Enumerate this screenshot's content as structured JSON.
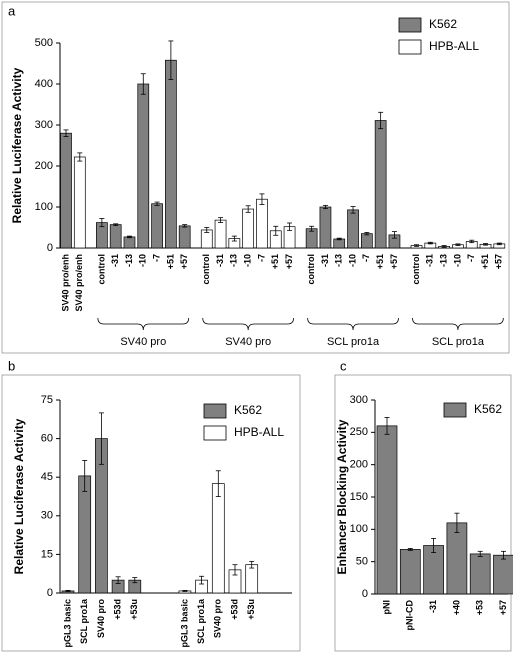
{
  "chart_data": [
    {
      "type": "bar",
      "panel_label": "a",
      "ylabel": "Relative Luciferase Activity",
      "ylim": [
        0,
        500
      ],
      "yticks": [
        0,
        100,
        200,
        300,
        400,
        500
      ],
      "legend": [
        {
          "name": "K562",
          "color": "#808080"
        },
        {
          "name": "HPB-ALL",
          "color": "#ffffff"
        }
      ],
      "groups": [
        {
          "label": null,
          "color": "#808080",
          "categories": [
            "SV40 pro/enh"
          ],
          "values": [
            280
          ],
          "errors": [
            8
          ]
        },
        {
          "label": null,
          "color": "#ffffff",
          "categories": [
            "SV40 pro/enh"
          ],
          "values": [
            222
          ],
          "errors": [
            10
          ]
        },
        {
          "label": "SV40 pro",
          "color": "#808080",
          "categories": [
            "control",
            "-31",
            "-13",
            "-10",
            "-7",
            "+51",
            "+57"
          ],
          "values": [
            62,
            57,
            27,
            400,
            108,
            458,
            54
          ],
          "errors": [
            10,
            2,
            2,
            25,
            4,
            47,
            3
          ]
        },
        {
          "label": "SV40 pro",
          "color": "#ffffff",
          "categories": [
            "control",
            "-31",
            "-13",
            "-10",
            "-7",
            "+51",
            "+57"
          ],
          "values": [
            44,
            68,
            23,
            95,
            119,
            42,
            52
          ],
          "errors": [
            6,
            6,
            6,
            8,
            13,
            11,
            9
          ]
        },
        {
          "label": "SCL pro1a",
          "color": "#808080",
          "categories": [
            "control",
            "-31",
            "-13",
            "-10",
            "-7",
            "+51",
            "+57"
          ],
          "values": [
            47,
            100,
            22,
            93,
            35,
            311,
            32
          ],
          "errors": [
            6,
            4,
            2,
            8,
            3,
            20,
            8
          ]
        },
        {
          "label": "SCL pro1a",
          "color": "#ffffff",
          "categories": [
            "control",
            "-31",
            "-13",
            "-10",
            "-7",
            "+51",
            "+57"
          ],
          "values": [
            6,
            12,
            4,
            8,
            16,
            9,
            10
          ],
          "errors": [
            2,
            2,
            2,
            2,
            3,
            2,
            2
          ]
        }
      ]
    },
    {
      "type": "bar",
      "panel_label": "b",
      "ylabel": "Relative Luciferase Activity",
      "ylim": [
        0,
        75
      ],
      "yticks": [
        0,
        15,
        30,
        45,
        60,
        75
      ],
      "legend": [
        {
          "name": "K562",
          "color": "#808080"
        },
        {
          "name": "HPB-ALL",
          "color": "#ffffff"
        }
      ],
      "groups": [
        {
          "color": "#808080",
          "categories": [
            "pGL3 basic",
            "SCL pro1a",
            "SV40 pro",
            "+53d",
            "+53u"
          ],
          "values": [
            0.8,
            45.5,
            60,
            5,
            5
          ],
          "errors": [
            0.2,
            6,
            10,
            1.3,
            1
          ]
        },
        {
          "color": "#ffffff",
          "categories": [
            "pGL3 basic",
            "SCL pro1a",
            "SV40 pro",
            "+53d",
            "+53u"
          ],
          "values": [
            0.8,
            5,
            42.5,
            9,
            11
          ],
          "errors": [
            0.2,
            1.5,
            5,
            2,
            1.3
          ]
        }
      ]
    },
    {
      "type": "bar",
      "panel_label": "c",
      "ylabel": "Enhancer Blocking Activity",
      "ylim": [
        0,
        300
      ],
      "yticks": [
        0,
        50,
        100,
        150,
        200,
        250,
        300
      ],
      "legend": [
        {
          "name": "K562",
          "color": "#808080"
        }
      ],
      "groups": [
        {
          "color": "#808080",
          "categories": [
            "pNI",
            "pNI-CD",
            "-31",
            "+40",
            "+53",
            "+57"
          ],
          "values": [
            260,
            69,
            75,
            110,
            62,
            60
          ],
          "errors": [
            13,
            1.5,
            11,
            15,
            4,
            6
          ]
        }
      ]
    }
  ]
}
